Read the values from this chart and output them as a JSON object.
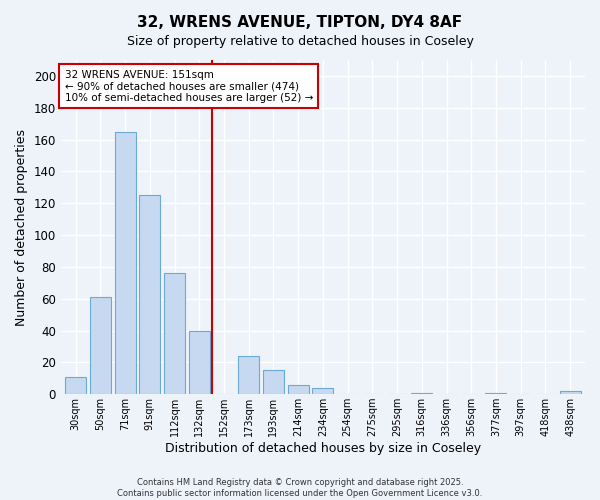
{
  "title": "32, WRENS AVENUE, TIPTON, DY4 8AF",
  "subtitle": "Size of property relative to detached houses in Coseley",
  "xlabel": "Distribution of detached houses by size in Coseley",
  "ylabel": "Number of detached properties",
  "bar_labels": [
    "30sqm",
    "50sqm",
    "71sqm",
    "91sqm",
    "112sqm",
    "132sqm",
    "152sqm",
    "173sqm",
    "193sqm",
    "214sqm",
    "234sqm",
    "254sqm",
    "275sqm",
    "295sqm",
    "316sqm",
    "336sqm",
    "356sqm",
    "377sqm",
    "397sqm",
    "418sqm",
    "438sqm"
  ],
  "bar_values": [
    11,
    61,
    165,
    125,
    76,
    40,
    0,
    24,
    15,
    6,
    4,
    0,
    0,
    0,
    1,
    0,
    0,
    1,
    0,
    0,
    2
  ],
  "bar_color": "#c6d9f0",
  "bar_edge_color": "#6aaad4",
  "vline_color": "#cc0000",
  "ylim": [
    0,
    210
  ],
  "yticks": [
    0,
    20,
    40,
    60,
    80,
    100,
    120,
    140,
    160,
    180,
    200
  ],
  "annotation_title": "32 WRENS AVENUE: 151sqm",
  "annotation_line1": "← 90% of detached houses are smaller (474)",
  "annotation_line2": "10% of semi-detached houses are larger (52) →",
  "footer_line1": "Contains HM Land Registry data © Crown copyright and database right 2025.",
  "footer_line2": "Contains public sector information licensed under the Open Government Licence v3.0.",
  "bg_color": "#eef2f9",
  "grid_color": "#d8e4f0",
  "vline_bar_index": 6
}
